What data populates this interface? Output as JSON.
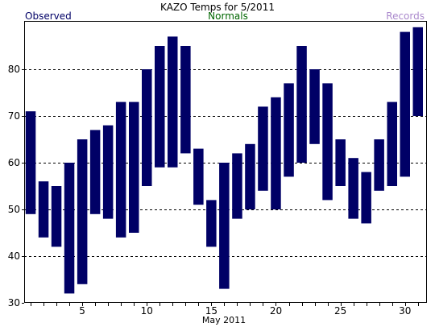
{
  "chart_data": {
    "type": "bar",
    "subtype": "floating-range",
    "title": "KAZO Temps for 5/2011",
    "xlabel": "May 2011",
    "ylabel": "",
    "legend": {
      "observed": "Observed",
      "normals": "Normals",
      "records": "Records",
      "placement": "top"
    },
    "colors": {
      "bar": "#000066",
      "observed": "#000066",
      "normals": "#006600",
      "records": "#aa88cc",
      "grid": "#000000"
    },
    "grid": true,
    "xlim": [
      1,
      31
    ],
    "ylim": [
      30,
      90
    ],
    "x_ticks": [
      5,
      10,
      15,
      20,
      25,
      30
    ],
    "x_tick_labels": [
      "5",
      "10",
      "15",
      "20",
      "25",
      "30"
    ],
    "y_ticks": [
      30,
      40,
      50,
      60,
      70,
      80
    ],
    "y_tick_labels": [
      "30",
      "40",
      "50",
      "60",
      "70",
      "80"
    ],
    "y_gridlines": [
      40,
      50,
      60,
      70,
      80
    ],
    "days": [
      1,
      2,
      3,
      4,
      5,
      6,
      7,
      8,
      9,
      10,
      11,
      12,
      13,
      14,
      15,
      16,
      17,
      18,
      19,
      20,
      21,
      22,
      23,
      24,
      25,
      26,
      27,
      28,
      29,
      30,
      31
    ],
    "series": [
      {
        "name": "Observed",
        "low": [
          49,
          44,
          42,
          32,
          34,
          49,
          48,
          44,
          45,
          55,
          59,
          59,
          62,
          51,
          42,
          33,
          48,
          50,
          54,
          50,
          57,
          60,
          64,
          52,
          55,
          48,
          47,
          54,
          55,
          57,
          70
        ],
        "high": [
          71,
          56,
          55,
          60,
          65,
          67,
          68,
          73,
          73,
          80,
          85,
          87,
          85,
          63,
          52,
          60,
          62,
          64,
          72,
          74,
          77,
          85,
          80,
          77,
          65,
          61,
          58,
          65,
          73,
          88,
          89
        ]
      }
    ]
  }
}
